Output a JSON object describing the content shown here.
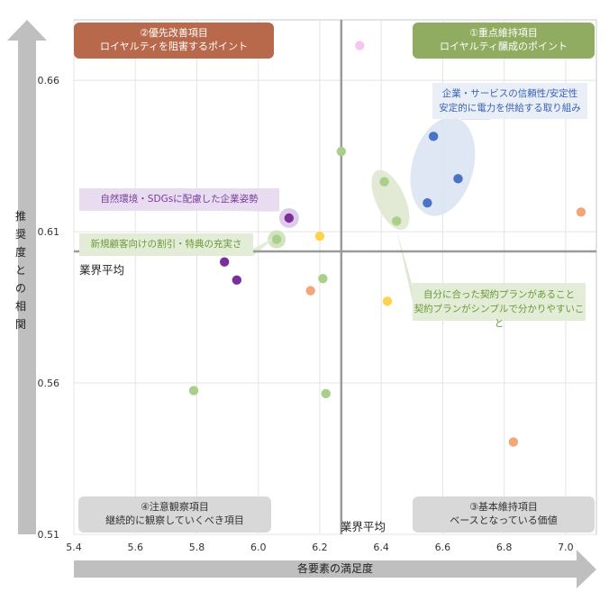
{
  "chart_data": {
    "type": "scatter",
    "xlabel": "各要素の満足度",
    "ylabel": "推奨度との相関",
    "xlim": [
      5.4,
      7.1
    ],
    "ylim": [
      0.51,
      0.68
    ],
    "x_ticks": [
      "5.4",
      "5.6",
      "5.8",
      "6.0",
      "6.2",
      "6.4",
      "6.6",
      "6.8",
      "7.0"
    ],
    "y_ticks": [
      "0.51",
      "0.56",
      "0.61",
      "0.66"
    ],
    "grid": true,
    "reference_lines": {
      "x": 6.27,
      "y": 0.6035,
      "x_label": "業界平均",
      "y_label": "業界平均"
    },
    "quadrants": [
      {
        "id": "q1",
        "line1": "①重点維持項目",
        "line2": "ロイヤルティ醸成のポイント",
        "color": "#8fac61"
      },
      {
        "id": "q2",
        "line1": "②優先改善項目",
        "line2": "ロイヤルティを阻害するポイント",
        "color": "#b9694b"
      },
      {
        "id": "q3",
        "line1": "③基本維持項目",
        "line2": "ベースとなっている価値",
        "color": "#d8d8d8"
      },
      {
        "id": "q4",
        "line1": "④注意観察項目",
        "line2": "継続的に観察していくべき項目",
        "color": "#d8d8d8"
      }
    ],
    "callouts": {
      "blue": [
        "企業・サービスの信頼性/安定性",
        "安定的に電力を供給する取り組み"
      ],
      "purple": "自然環境・SDGsに配慮した企業姿勢",
      "green1": "新規顧客向けの割引・特典の充実さ",
      "green2": [
        "自分に合った契約プランがあること",
        "契約プランがシンプルで分かりやすいこと"
      ]
    },
    "points": [
      {
        "x": 6.33,
        "y": 0.6715,
        "color": "#f8c4f0"
      },
      {
        "x": 6.57,
        "y": 0.6415,
        "color": "#4a73c6"
      },
      {
        "x": 6.65,
        "y": 0.6275,
        "color": "#4a73c6"
      },
      {
        "x": 6.55,
        "y": 0.6195,
        "color": "#4a73c6"
      },
      {
        "x": 6.27,
        "y": 0.6365,
        "color": "#a9cf8a"
      },
      {
        "x": 6.41,
        "y": 0.6265,
        "color": "#a9cf8a"
      },
      {
        "x": 6.45,
        "y": 0.6135,
        "color": "#a9cf8a"
      },
      {
        "x": 6.1,
        "y": 0.6145,
        "color": "#7b2f9a",
        "highlight": true
      },
      {
        "x": 6.06,
        "y": 0.6075,
        "color": "#a9cf8a",
        "highlight": true
      },
      {
        "x": 6.2,
        "y": 0.6085,
        "color": "#ffd34d"
      },
      {
        "x": 7.05,
        "y": 0.6165,
        "color": "#f2a779"
      },
      {
        "x": 5.89,
        "y": 0.6,
        "color": "#7b2f9a"
      },
      {
        "x": 5.93,
        "y": 0.594,
        "color": "#7b2f9a"
      },
      {
        "x": 6.21,
        "y": 0.5945,
        "color": "#a9cf8a"
      },
      {
        "x": 6.17,
        "y": 0.5905,
        "color": "#f2a779"
      },
      {
        "x": 6.42,
        "y": 0.587,
        "color": "#ffd34d"
      },
      {
        "x": 5.79,
        "y": 0.5575,
        "color": "#a9cf8a"
      },
      {
        "x": 6.22,
        "y": 0.5565,
        "color": "#a9cf8a"
      },
      {
        "x": 6.83,
        "y": 0.5405,
        "color": "#f2a779"
      },
      {
        "x": 6.94,
        "y": 0.5145,
        "color": "#f8c4f0"
      }
    ]
  }
}
